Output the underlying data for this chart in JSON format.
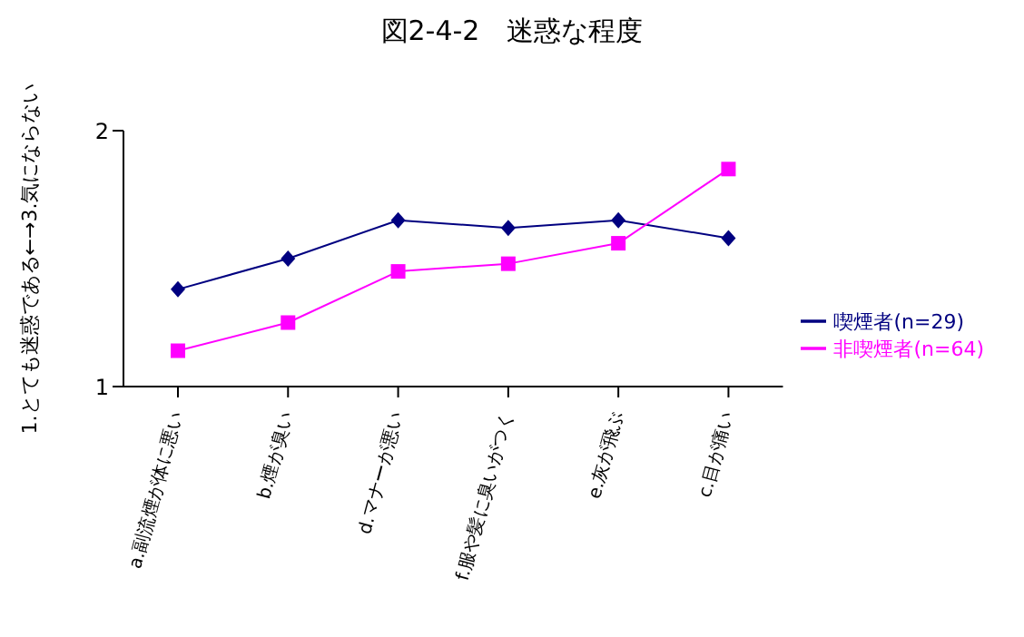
{
  "chart_data": {
    "type": "line",
    "title": "図2-4-2　迷惑な程度",
    "ylabel": "1.とても迷惑である←→3.気にならない",
    "categories": [
      "a.副流煙が体に悪い",
      "b.煙が臭い",
      "d.マナーが悪い",
      "f.服や髪に臭いがつく",
      "e.灰が飛ぶ",
      "c.目が痛い"
    ],
    "series": [
      {
        "name": "喫煙者(n=29)",
        "color": "#000080",
        "marker": "diamond",
        "values": [
          1.38,
          1.5,
          1.65,
          1.62,
          1.65,
          1.58
        ]
      },
      {
        "name": "非喫煙者(n=64)",
        "color": "#ff00ff",
        "marker": "square",
        "values": [
          1.14,
          1.25,
          1.45,
          1.48,
          1.56,
          1.85
        ]
      }
    ],
    "ylim": [
      1,
      2
    ],
    "yticks": [
      1,
      2
    ],
    "grid": false,
    "legend": "right"
  }
}
